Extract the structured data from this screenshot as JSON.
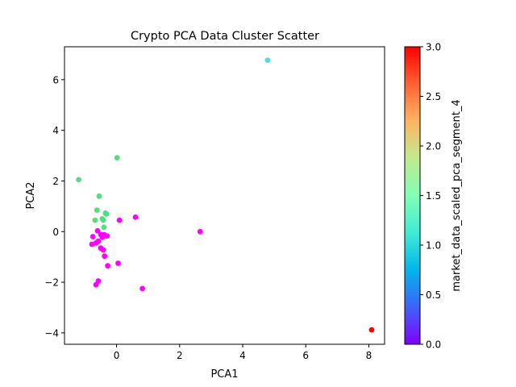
{
  "chart_data": {
    "type": "scatter",
    "title": "Crypto PCA Data Cluster Scatter",
    "xlabel": "PCA1",
    "ylabel": "PCA2",
    "xlim": [
      -1.65,
      8.5
    ],
    "ylim": [
      -4.45,
      7.3
    ],
    "x_ticks": [
      0,
      2,
      4,
      6,
      8
    ],
    "y_ticks": [
      -4,
      -2,
      0,
      2,
      4,
      6
    ],
    "x_tick_labels": [
      "0",
      "2",
      "4",
      "6",
      "8"
    ],
    "y_tick_labels": [
      "−4",
      "−2",
      "0",
      "2",
      "4",
      "6"
    ],
    "grid": false,
    "colormap": "rainbow",
    "colorbar": {
      "label": "market_data_scaled_pca_segment_4",
      "range": [
        0.0,
        3.0
      ],
      "ticks": [
        0.0,
        0.5,
        1.0,
        1.5,
        2.0,
        2.5,
        3.0
      ],
      "tick_labels": [
        "0.0",
        "0.5",
        "1.0",
        "1.5",
        "2.0",
        "2.5",
        "3.0"
      ],
      "gradient_colors": [
        "#8000ff",
        "#4062fa",
        "#00b5eb",
        "#40ecd4",
        "#80ffb4",
        "#c0eb8d",
        "#ffb462",
        "#ff6232",
        "#ff0000"
      ]
    },
    "points": [
      {
        "x": 4.79,
        "y": 6.77,
        "c": 1
      },
      {
        "x": 8.09,
        "y": -3.88,
        "c": 3
      },
      {
        "x": 0.02,
        "y": 2.92,
        "c": 2
      },
      {
        "x": -1.2,
        "y": 2.05,
        "c": 2
      },
      {
        "x": -0.55,
        "y": 1.4,
        "c": 2
      },
      {
        "x": -0.62,
        "y": 0.85,
        "c": 2
      },
      {
        "x": -0.35,
        "y": 0.73,
        "c": 2
      },
      {
        "x": -0.32,
        "y": 0.7,
        "c": 2
      },
      {
        "x": -0.45,
        "y": 0.5,
        "c": 2
      },
      {
        "x": -0.68,
        "y": 0.45,
        "c": 2
      },
      {
        "x": -0.42,
        "y": 0.45,
        "c": 2
      },
      {
        "x": -0.4,
        "y": 0.17,
        "c": 2
      },
      {
        "x": 0.09,
        "y": 0.45,
        "c": 0
      },
      {
        "x": 0.6,
        "y": 0.57,
        "c": 0
      },
      {
        "x": 2.65,
        "y": 0.0,
        "c": 0
      },
      {
        "x": -0.6,
        "y": 0.03,
        "c": 0
      },
      {
        "x": -0.5,
        "y": -0.12,
        "c": 0
      },
      {
        "x": -0.4,
        "y": -0.12,
        "c": 0
      },
      {
        "x": -0.3,
        "y": -0.17,
        "c": 0
      },
      {
        "x": -0.75,
        "y": -0.2,
        "c": 0
      },
      {
        "x": -0.45,
        "y": -0.22,
        "c": 0
      },
      {
        "x": -0.58,
        "y": -0.38,
        "c": 0
      },
      {
        "x": -0.65,
        "y": -0.45,
        "c": 0
      },
      {
        "x": -0.78,
        "y": -0.5,
        "c": 0
      },
      {
        "x": -0.5,
        "y": -0.65,
        "c": 0
      },
      {
        "x": -0.42,
        "y": -0.72,
        "c": 0
      },
      {
        "x": -0.38,
        "y": -0.97,
        "c": 0
      },
      {
        "x": 0.05,
        "y": -1.25,
        "c": 0
      },
      {
        "x": -0.28,
        "y": -1.35,
        "c": 0
      },
      {
        "x": -0.58,
        "y": -1.95,
        "c": 0
      },
      {
        "x": -0.65,
        "y": -2.1,
        "c": 0
      },
      {
        "x": 0.82,
        "y": -2.25,
        "c": 0
      }
    ]
  }
}
